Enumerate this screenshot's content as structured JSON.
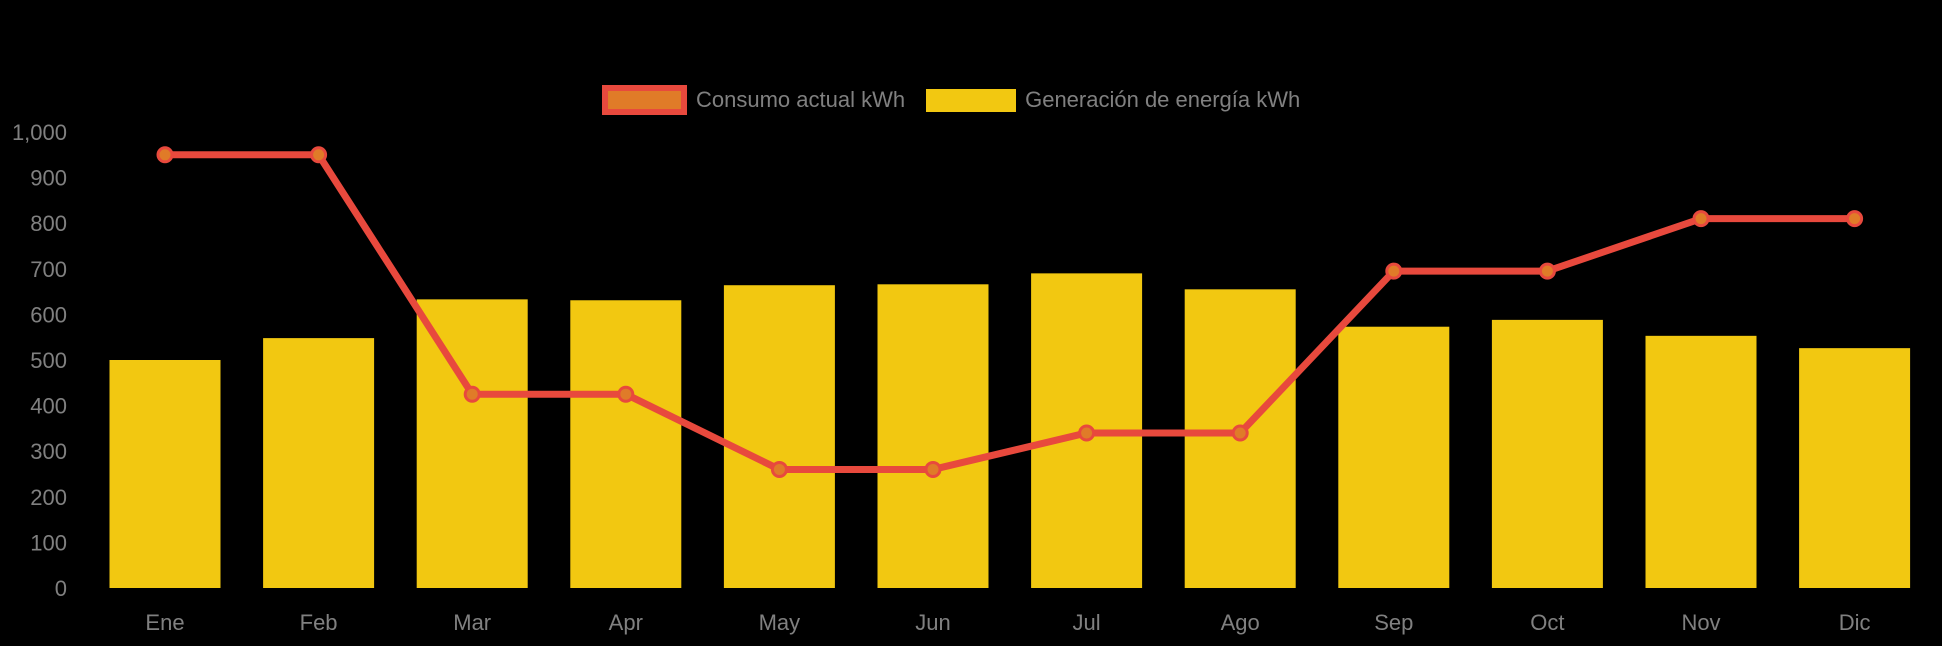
{
  "legend": {
    "items": [
      {
        "label": "Consumo actual kWh",
        "swatch": "orange-fill-red-border"
      },
      {
        "label": "Generación de energía kWh",
        "swatch": "yellow-fill"
      }
    ]
  },
  "colors": {
    "background": "#000000",
    "bar": "#F2C811",
    "line": "#E8493D",
    "marker_fill": "#E07B28",
    "axis_text": "#808080"
  },
  "chart_data": {
    "type": "combo bar+line",
    "title": "",
    "xlabel": "",
    "ylabel": "",
    "categories": [
      "Ene",
      "Feb",
      "Mar",
      "Apr",
      "May",
      "Jun",
      "Jul",
      "Ago",
      "Sep",
      "Oct",
      "Nov",
      "Dic"
    ],
    "series": [
      {
        "name": "Consumo actual kWh",
        "type": "line",
        "color": "#E8493D",
        "marker_color": "#E07B28",
        "values": [
          950,
          950,
          425,
          425,
          260,
          260,
          340,
          340,
          695,
          695,
          810,
          810
        ]
      },
      {
        "name": "Generación de energía kWh",
        "type": "bar",
        "color": "#F2C811",
        "values": [
          500,
          548,
          633,
          631,
          664,
          666,
          690,
          655,
          573,
          588,
          553,
          526
        ]
      }
    ],
    "ylim": [
      0,
      1000
    ],
    "yticks": [
      {
        "value": 0,
        "label": "0"
      },
      {
        "value": 100,
        "label": "100"
      },
      {
        "value": 200,
        "label": "200"
      },
      {
        "value": 300,
        "label": "300"
      },
      {
        "value": 400,
        "label": "400"
      },
      {
        "value": 500,
        "label": "500"
      },
      {
        "value": 600,
        "label": "600"
      },
      {
        "value": 700,
        "label": "700"
      },
      {
        "value": 800,
        "label": "800"
      },
      {
        "value": 900,
        "label": "900"
      },
      {
        "value": 1000,
        "label": "1,000"
      }
    ],
    "grid": false,
    "legend_position": "top-center",
    "background": "#000000"
  }
}
